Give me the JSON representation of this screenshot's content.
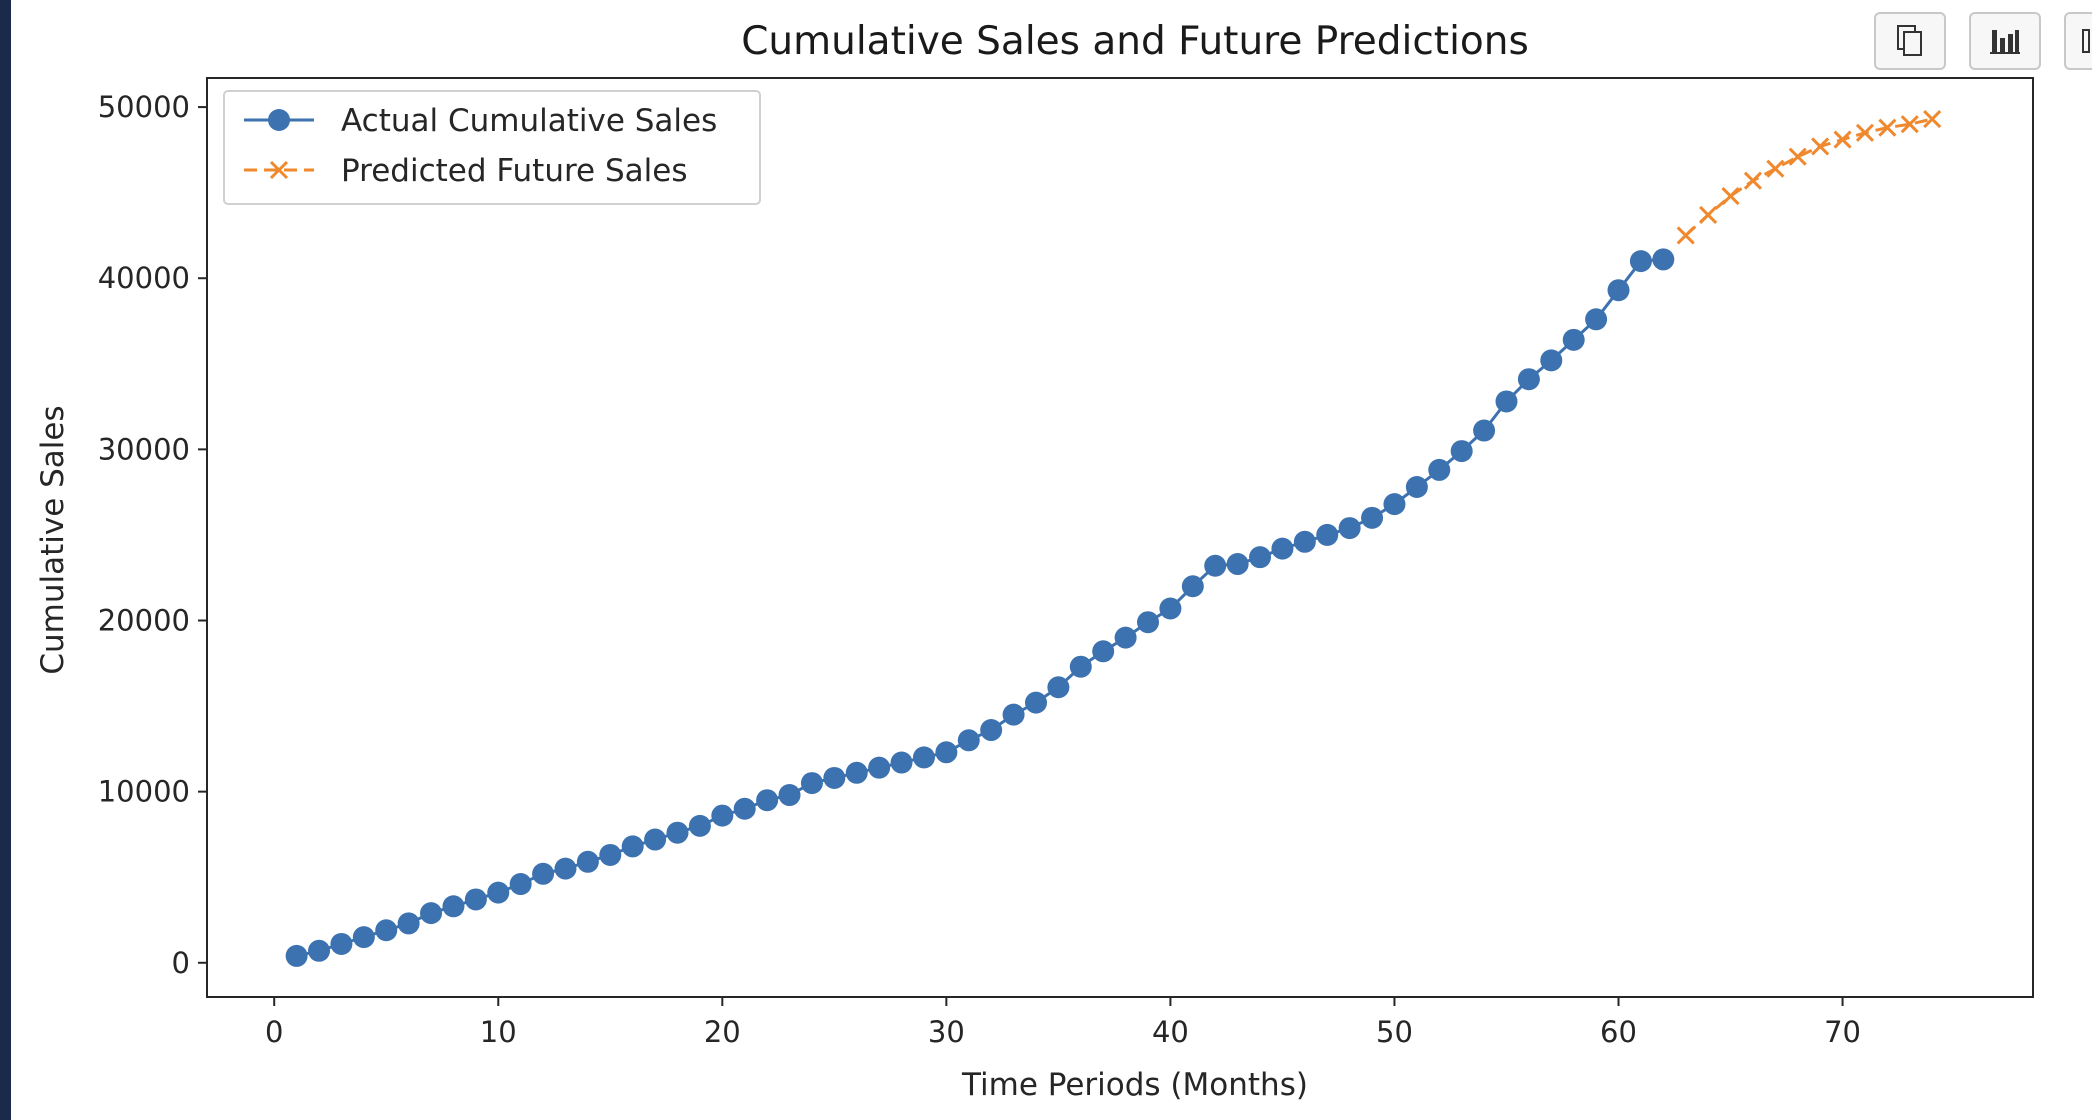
{
  "toolbar": {
    "buttons": [
      {
        "icon": "copy-icon"
      },
      {
        "icon": "bar-chart-icon"
      },
      {
        "icon": "more-icon"
      }
    ]
  },
  "chart_data": {
    "type": "line",
    "title": "Cumulative Sales and Future Predictions",
    "xlabel": "Time Periods (Months)",
    "ylabel": "Cumulative Sales",
    "xlim": [
      -3,
      78.5
    ],
    "ylim": [
      -2000,
      51700
    ],
    "xticks": [
      0,
      10,
      20,
      30,
      40,
      50,
      60,
      70
    ],
    "yticks": [
      0,
      10000,
      20000,
      30000,
      40000,
      50000
    ],
    "legend_position": "upper-left",
    "series": [
      {
        "name": "Actual Cumulative Sales",
        "color": "#3d72b0",
        "marker": "circle",
        "linestyle": "solid",
        "x": [
          1,
          2,
          3,
          4,
          5,
          6,
          7,
          8,
          9,
          10,
          11,
          12,
          13,
          14,
          15,
          16,
          17,
          18,
          19,
          20,
          21,
          22,
          23,
          24,
          25,
          26,
          27,
          28,
          29,
          30,
          31,
          32,
          33,
          34,
          35,
          36,
          37,
          38,
          39,
          40,
          41,
          42,
          43,
          44,
          45,
          46,
          47,
          48,
          49,
          50,
          51,
          52,
          53,
          54,
          55,
          56,
          57,
          58,
          59,
          60,
          61,
          62
        ],
        "y": [
          400,
          700,
          1100,
          1500,
          1900,
          2300,
          2900,
          3300,
          3700,
          4100,
          4600,
          5200,
          5500,
          5900,
          6300,
          6800,
          7200,
          7600,
          8000,
          8600,
          9000,
          9500,
          9800,
          10500,
          10800,
          11100,
          11400,
          11700,
          12000,
          12300,
          13000,
          13600,
          14500,
          15200,
          16100,
          17300,
          18200,
          19000,
          19900,
          20700,
          22000,
          23200,
          23300,
          23700,
          24200,
          24600,
          25000,
          25400,
          26000,
          26800,
          27800,
          28800,
          29900,
          31100,
          32800,
          34100,
          35200,
          36400,
          37600,
          39300,
          41000,
          41100
        ]
      },
      {
        "name": "Predicted Future Sales",
        "color": "#f0882e",
        "marker": "x",
        "linestyle": "dashed",
        "x": [
          63,
          64,
          65,
          66,
          67,
          68,
          69,
          70,
          71,
          72,
          73,
          74
        ],
        "y": [
          42500,
          43700,
          44800,
          45700,
          46400,
          47100,
          47700,
          48100,
          48500,
          48800,
          49000,
          49300
        ]
      }
    ]
  }
}
